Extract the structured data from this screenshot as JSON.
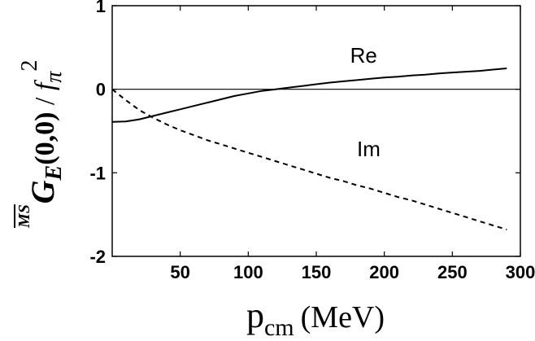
{
  "chart_data": {
    "type": "line",
    "xlabel": {
      "main": "p",
      "sub": "cm",
      "unit": "(MeV)"
    },
    "ylabel": {
      "main": "G",
      "sub": "E",
      "sup": "MS",
      "args": "(0,0)",
      "slash": " / ",
      "f": "f",
      "f_sub": "π",
      "f_sup": "2"
    },
    "xlim": [
      0,
      300
    ],
    "ylim": [
      -2,
      1
    ],
    "x_ticks": [
      50,
      100,
      150,
      200,
      250,
      300
    ],
    "y_ticks": [
      1,
      0,
      -1,
      -2
    ],
    "x_tick_labels": [
      "50",
      "100",
      "150",
      "200",
      "250",
      "300"
    ],
    "y_tick_labels": [
      "1",
      "0",
      "-1",
      "-2"
    ],
    "zero_line": true,
    "grid": false,
    "series": [
      {
        "name": "Re",
        "style": "solid",
        "color": "#000000",
        "x": [
          0,
          10,
          20,
          30,
          40,
          50,
          60,
          70,
          80,
          90,
          100,
          110,
          120,
          130,
          140,
          150,
          160,
          170,
          180,
          190,
          200,
          210,
          220,
          230,
          240,
          250,
          260,
          270,
          280,
          290
        ],
        "y": [
          -0.39,
          -0.385,
          -0.36,
          -0.32,
          -0.28,
          -0.24,
          -0.2,
          -0.16,
          -0.12,
          -0.08,
          -0.05,
          -0.02,
          0.0,
          0.02,
          0.04,
          0.06,
          0.08,
          0.095,
          0.11,
          0.125,
          0.14,
          0.15,
          0.165,
          0.175,
          0.19,
          0.2,
          0.21,
          0.22,
          0.235,
          0.25
        ]
      },
      {
        "name": "Im",
        "style": "dashed",
        "color": "#000000",
        "x": [
          0,
          10,
          20,
          30,
          40,
          50,
          60,
          70,
          80,
          90,
          100,
          110,
          120,
          130,
          140,
          150,
          160,
          170,
          180,
          190,
          200,
          210,
          220,
          230,
          240,
          250,
          260,
          270,
          280,
          290
        ],
        "y": [
          0.0,
          -0.13,
          -0.25,
          -0.34,
          -0.42,
          -0.49,
          -0.55,
          -0.61,
          -0.66,
          -0.71,
          -0.76,
          -0.81,
          -0.86,
          -0.91,
          -0.96,
          -1.01,
          -1.06,
          -1.1,
          -1.15,
          -1.19,
          -1.24,
          -1.29,
          -1.33,
          -1.38,
          -1.43,
          -1.48,
          -1.53,
          -1.58,
          -1.63,
          -1.68
        ]
      }
    ]
  }
}
